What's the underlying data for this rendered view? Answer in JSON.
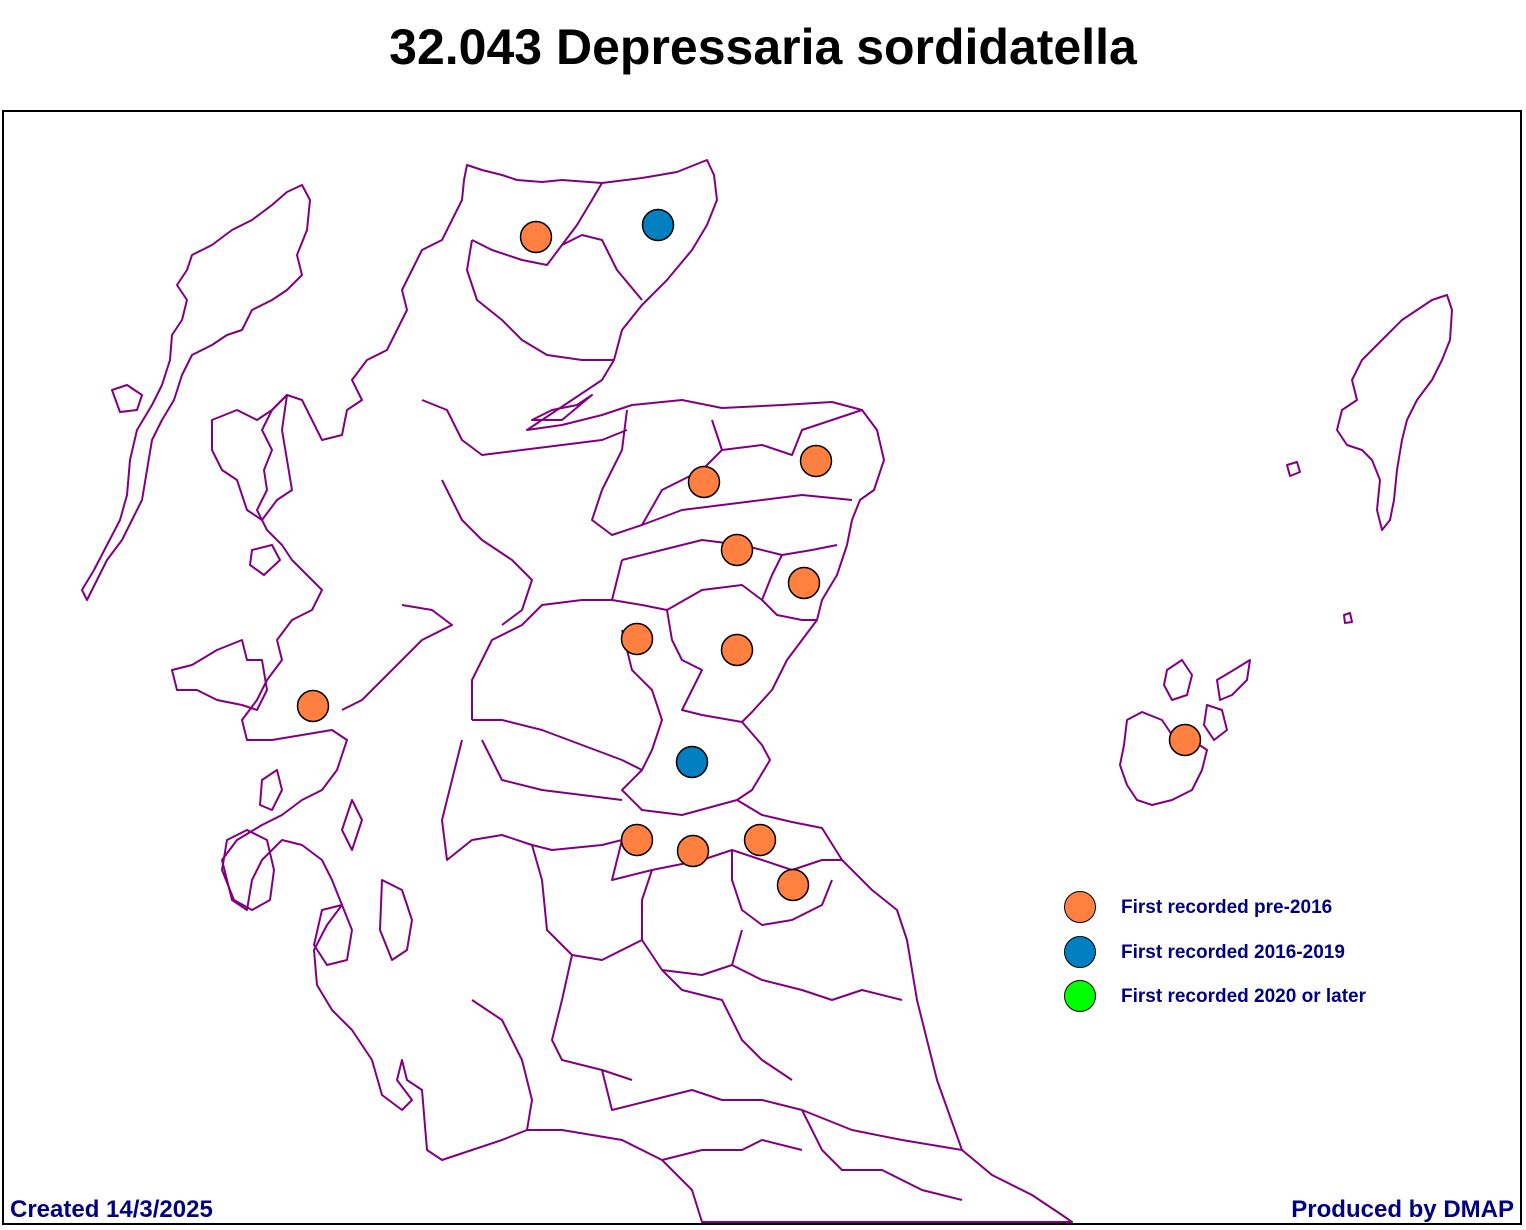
{
  "title": "32.043 Depressaria sordidatella",
  "footer": {
    "created": "Created 14/3/2025",
    "produced": "Produced by DMAP"
  },
  "colors": {
    "boundary": "#800080",
    "text": "#000080",
    "pre2016": "#FF8040",
    "y2016_2019": "#0080C0",
    "y2020_later": "#00FF00"
  },
  "legend": [
    {
      "label": "First recorded pre-2016",
      "color": "#FF8040"
    },
    {
      "label": "First recorded 2016-2019",
      "color": "#0080C0"
    },
    {
      "label": "First recorded 2020 or later",
      "color": "#00FF00"
    }
  ],
  "records": [
    {
      "category": "pre2016",
      "near": "West Sutherland"
    },
    {
      "category": "2016-2019",
      "near": "Caithness"
    },
    {
      "category": "pre2016",
      "near": "Banffshire"
    },
    {
      "category": "pre2016",
      "near": "North Aberdeenshire"
    },
    {
      "category": "pre2016",
      "near": "South Aberdeenshire"
    },
    {
      "category": "pre2016",
      "near": "Kincardineshire"
    },
    {
      "category": "pre2016",
      "near": "Mid Perthshire"
    },
    {
      "category": "pre2016",
      "near": "Angus"
    },
    {
      "category": "pre2016",
      "near": "Argyll"
    },
    {
      "category": "2016-2019",
      "near": "Fife"
    },
    {
      "category": "pre2016",
      "near": "West Lothian"
    },
    {
      "category": "pre2016",
      "near": "Midlothian"
    },
    {
      "category": "pre2016",
      "near": "East Lothian"
    },
    {
      "category": "pre2016",
      "near": "Berwickshire"
    },
    {
      "category": "pre2016",
      "near": "Orkney"
    }
  ]
}
